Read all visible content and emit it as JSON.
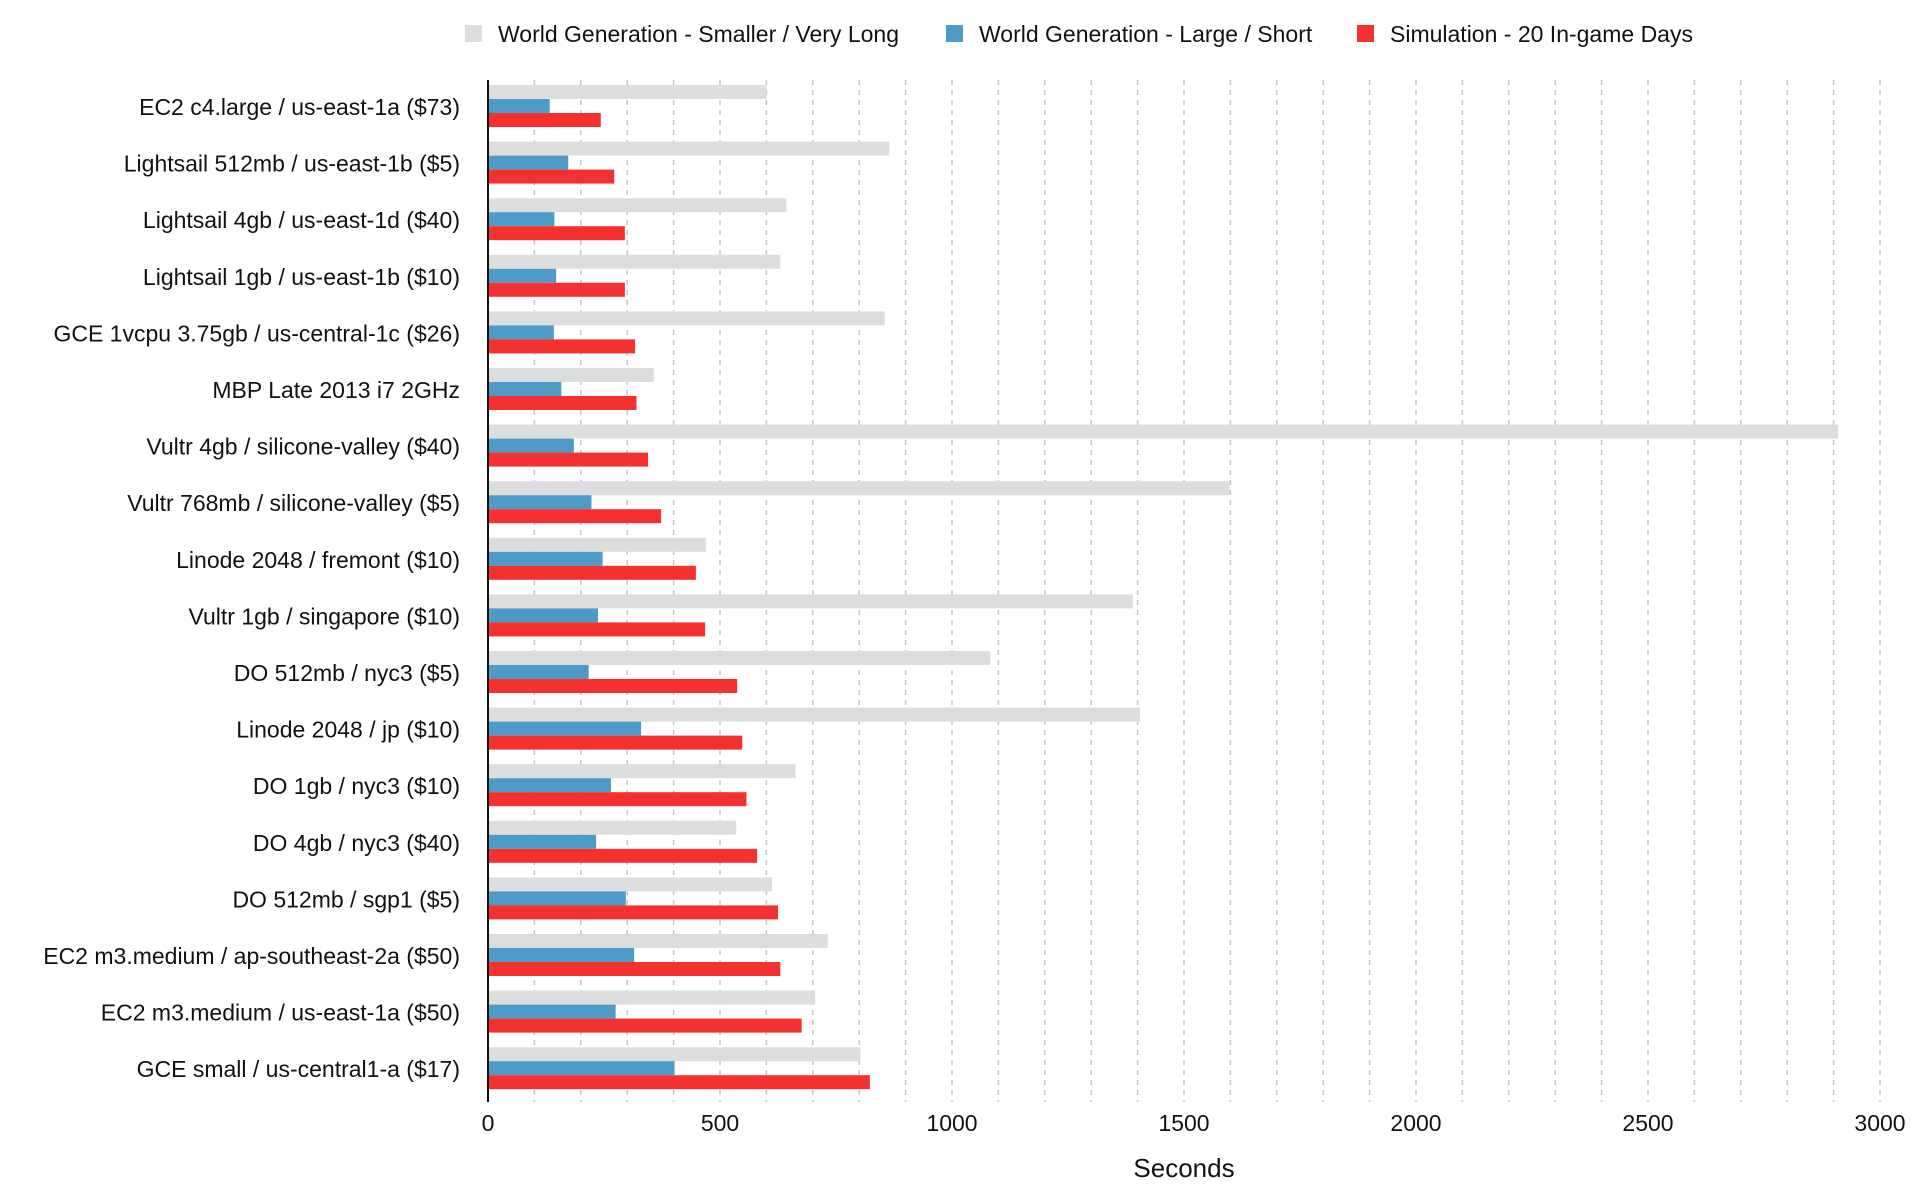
{
  "chart_data": {
    "type": "bar",
    "orientation": "horizontal",
    "title": "",
    "xlabel": "Seconds",
    "ylabel": "",
    "xlim": [
      0,
      3000
    ],
    "x_ticks": [
      0,
      500,
      1000,
      1500,
      2000,
      2500,
      3000
    ],
    "grid": "vertical dashed",
    "legend_position": "top",
    "categories": [
      "EC2 c4.large / us-east-1a ($73)",
      "Lightsail 512mb / us-east-1b ($5)",
      "Lightsail 4gb / us-east-1d ($40)",
      "Lightsail 1gb / us-east-1b ($10)",
      "GCE 1vcpu 3.75gb / us-central-1c ($26)",
      "MBP Late 2013 i7 2GHz",
      "Vultr 4gb / silicone-valley ($40)",
      "Vultr 768mb / silicone-valley ($5)",
      "Linode 2048 / fremont ($10)",
      "Vultr 1gb / singapore ($10)",
      "DO 512mb / nyc3 ($5)",
      "Linode 2048 / jp ($10)",
      "DO 1gb / nyc3 ($10)",
      "DO 4gb / nyc3 ($40)",
      "DO 512mb / sgp1 ($5)",
      "EC2 m3.medium / ap-southeast-2a ($50)",
      "EC2 m3.medium / us-east-1a ($50)",
      "GCE small / us-central1-a ($17)"
    ],
    "series": [
      {
        "name": "World Generation - Smaller / Very Long",
        "color": "#dcdedd",
        "values": [
          600,
          865,
          643,
          630,
          855,
          357,
          2910,
          1598,
          470,
          1390,
          1083,
          1405,
          663,
          535,
          612,
          732,
          705,
          803
        ]
      },
      {
        "name": "World Generation - Large / Short",
        "color": "#4e9ac8",
        "values": [
          133,
          173,
          143,
          147,
          142,
          158,
          185,
          223,
          247,
          237,
          217,
          330,
          265,
          233,
          297,
          315,
          275,
          402
        ]
      },
      {
        "name": "Simulation - 20 In-game Days",
        "color": "#f4312f",
        "values": [
          243,
          272,
          295,
          295,
          317,
          320,
          345,
          373,
          448,
          468,
          537,
          548,
          557,
          580,
          625,
          630,
          676,
          823
        ]
      }
    ]
  }
}
